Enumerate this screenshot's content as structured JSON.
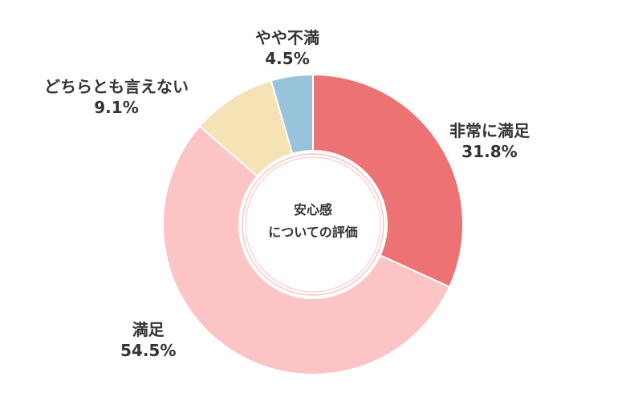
{
  "chart_data": {
    "type": "pie",
    "center_label": [
      "安心感",
      "についての評価"
    ],
    "slices": [
      {
        "label": "非常に満足",
        "percent_text": "31.8%",
        "value": 31.8,
        "color": "#ec7274"
      },
      {
        "label": "満足",
        "percent_text": "54.5%",
        "value": 54.5,
        "color": "#fdc4c6"
      },
      {
        "label": "どちらとも言えない",
        "percent_text": "9.1%",
        "value": 9.1,
        "color": "#f5e2b5"
      },
      {
        "label": "やや不満",
        "percent_text": "4.5%",
        "value": 4.5,
        "color": "#97c3db"
      }
    ]
  }
}
